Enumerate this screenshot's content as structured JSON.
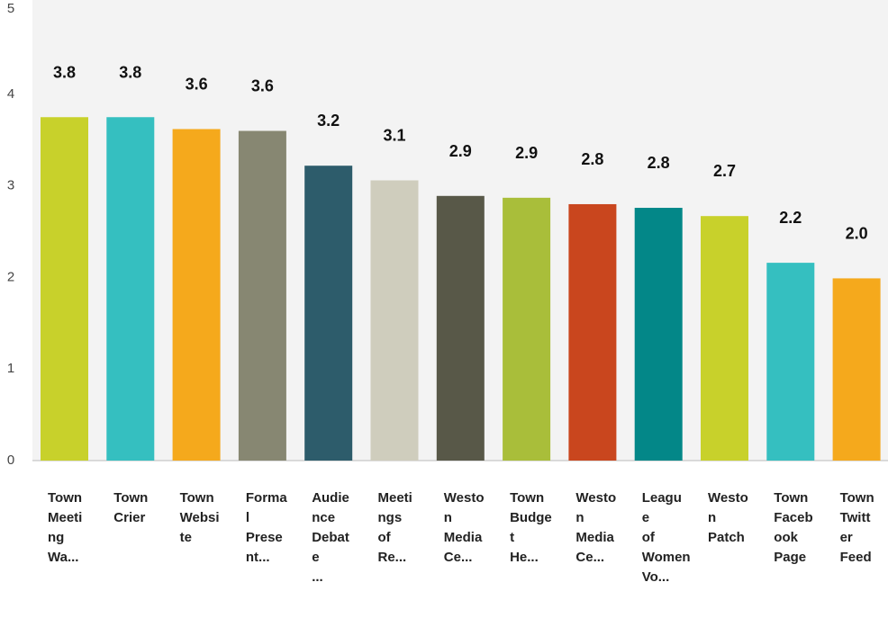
{
  "chart_data": {
    "type": "bar",
    "categories": [
      "Town Meeting Wa...",
      "Town Crier",
      "Town Website",
      "Formal Present...",
      "Audience Debate ...",
      "Meetings of Re...",
      "Weston Media Ce...",
      "Town Budget He...",
      "Weston Media Ce...",
      "League of Women Vo...",
      "Weston Patch",
      "Town Facebook Page",
      "Town Twitter Feed"
    ],
    "values": [
      3.75,
      3.75,
      3.62,
      3.6,
      3.22,
      3.06,
      2.89,
      2.87,
      2.8,
      2.76,
      2.67,
      2.16,
      1.99
    ],
    "value_labels": [
      "3.8",
      "3.8",
      "3.6",
      "3.6",
      "3.2",
      "3.1",
      "2.9",
      "2.9",
      "2.8",
      "2.8",
      "2.7",
      "2.2",
      "2.0"
    ],
    "colors": [
      "#c8d12b",
      "#35bfc0",
      "#f5a91c",
      "#878772",
      "#2d5c6b",
      "#cfcdbd",
      "#585848",
      "#a9be3a",
      "#c9461e",
      "#038788",
      "#c8d12b",
      "#35bfc0",
      "#f5a91c"
    ],
    "ylim": [
      0,
      5
    ],
    "yticks": [
      0,
      1,
      2,
      3,
      4,
      5
    ]
  }
}
